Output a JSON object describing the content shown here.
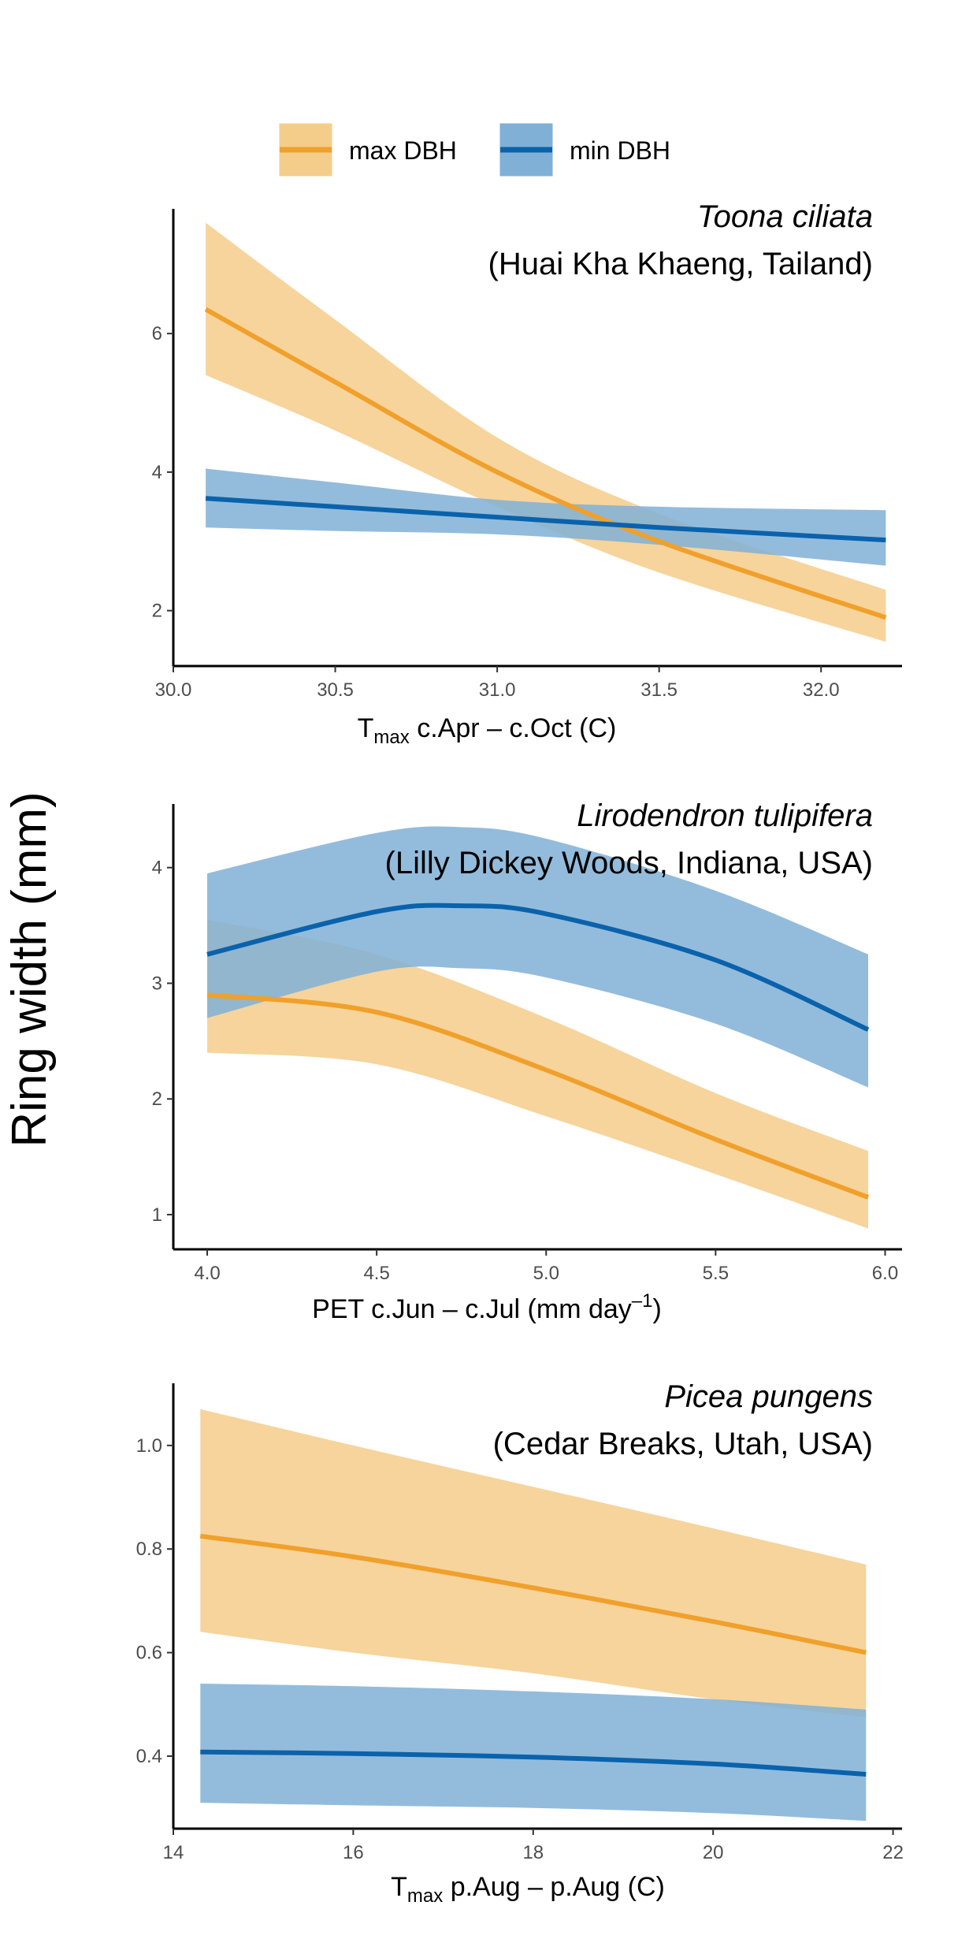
{
  "figure": {
    "ylabel": "Ring width (mm)",
    "legend": {
      "placement": "top",
      "entries": [
        {
          "label": "max DBH",
          "color": "#F0A02B",
          "fill": "#F5CD8B"
        },
        {
          "label": "min DBH",
          "color": "#0A62AB",
          "fill": "#80B0D6"
        }
      ]
    }
  },
  "chart_data": [
    {
      "type": "line",
      "title": "Toona ciliata",
      "subtitle": "(Huai Kha Khaeng, Tailand)",
      "xlabel": {
        "main": "T",
        "sub": "max",
        "rest": " c.Apr – c.Oct (C)"
      },
      "ylabel": "Ring width (mm)",
      "xlim": [
        30.0,
        32.25
      ],
      "ylim": [
        1.2,
        7.8
      ],
      "xticks": [
        30.0,
        30.5,
        31.0,
        31.5,
        32.0
      ],
      "xtick_labels": [
        "30.0",
        "30.5",
        "31.0",
        "31.5",
        "32.0"
      ],
      "yticks": [
        2,
        4,
        6
      ],
      "ytick_labels": [
        "2",
        "4",
        "6"
      ],
      "grid": false,
      "series": [
        {
          "name": "max DBH",
          "x": [
            30.1,
            30.5,
            31.0,
            31.5,
            32.2
          ],
          "y": [
            6.35,
            5.3,
            4.0,
            3.0,
            1.9
          ],
          "lower": [
            5.4,
            4.6,
            3.5,
            2.55,
            1.55
          ],
          "upper": [
            7.6,
            6.2,
            4.5,
            3.4,
            2.3
          ]
        },
        {
          "name": "min DBH",
          "x": [
            30.1,
            30.5,
            31.0,
            31.5,
            32.2
          ],
          "y": [
            3.62,
            3.5,
            3.35,
            3.2,
            3.02
          ],
          "lower": [
            3.2,
            3.15,
            3.1,
            2.95,
            2.65
          ],
          "upper": [
            4.05,
            3.85,
            3.6,
            3.5,
            3.45
          ]
        }
      ]
    },
    {
      "type": "line",
      "title": "Lirodendron tulipifera",
      "subtitle": "(Lilly Dickey Woods, Indiana, USA)",
      "xlabel": {
        "main": "PET c.Jun – c.Jul (mm day",
        "sup": "–1",
        "rest": ")"
      },
      "ylabel": "Ring width (mm)",
      "xlim": [
        3.9,
        6.05
      ],
      "ylim": [
        0.7,
        4.55
      ],
      "xticks": [
        4.0,
        4.5,
        5.0,
        5.5,
        6.0
      ],
      "xtick_labels": [
        "4.0",
        "4.5",
        "5.0",
        "5.5",
        "6.0"
      ],
      "yticks": [
        1,
        2,
        3,
        4
      ],
      "ytick_labels": [
        "1",
        "2",
        "3",
        "4"
      ],
      "grid": false,
      "series": [
        {
          "name": "max DBH",
          "x": [
            4.0,
            4.5,
            5.0,
            5.5,
            5.95
          ],
          "y": [
            2.9,
            2.75,
            2.25,
            1.65,
            1.15
          ],
          "lower": [
            2.4,
            2.3,
            1.85,
            1.35,
            0.88
          ],
          "upper": [
            3.55,
            3.25,
            2.7,
            2.05,
            1.55
          ]
        },
        {
          "name": "min DBH",
          "x": [
            4.0,
            4.5,
            4.75,
            5.0,
            5.5,
            5.95
          ],
          "y": [
            3.25,
            3.62,
            3.67,
            3.6,
            3.2,
            2.6
          ],
          "lower": [
            2.7,
            3.1,
            3.13,
            3.05,
            2.65,
            2.1
          ],
          "upper": [
            3.95,
            4.3,
            4.35,
            4.25,
            3.8,
            3.25
          ]
        }
      ]
    },
    {
      "type": "line",
      "title": "Picea pungens",
      "subtitle": "(Cedar Breaks, Utah, USA)",
      "xlabel": {
        "main": "T",
        "sub": "max",
        "rest": " p.Aug – p.Aug (C)"
      },
      "ylabel": "Ring width (mm)",
      "xlim": [
        14.0,
        22.1
      ],
      "ylim": [
        0.26,
        1.12
      ],
      "xticks": [
        14,
        16,
        18,
        20,
        22
      ],
      "xtick_labels": [
        "14",
        "16",
        "18",
        "20",
        "22"
      ],
      "yticks": [
        0.4,
        0.6,
        0.8,
        1.0
      ],
      "ytick_labels": [
        "0.4",
        "0.6",
        "0.8",
        "1.0"
      ],
      "grid": false,
      "series": [
        {
          "name": "max DBH",
          "x": [
            14.3,
            16,
            18,
            20,
            21.7
          ],
          "y": [
            0.825,
            0.785,
            0.725,
            0.66,
            0.6
          ],
          "lower": [
            0.64,
            0.6,
            0.56,
            0.51,
            0.475
          ],
          "upper": [
            1.07,
            1.0,
            0.92,
            0.84,
            0.77
          ]
        },
        {
          "name": "min DBH",
          "x": [
            14.3,
            16,
            18,
            20,
            21.7
          ],
          "y": [
            0.408,
            0.405,
            0.398,
            0.385,
            0.365
          ],
          "lower": [
            0.31,
            0.305,
            0.3,
            0.29,
            0.275
          ],
          "upper": [
            0.54,
            0.535,
            0.525,
            0.51,
            0.49
          ]
        }
      ]
    }
  ]
}
